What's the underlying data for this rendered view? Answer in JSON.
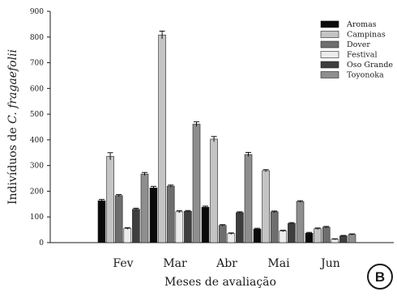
{
  "chart_data": {
    "type": "bar",
    "categories": [
      "Fev",
      "Mar",
      "Abr",
      "Mai",
      "Jun"
    ],
    "series": [
      {
        "name": "Aromas",
        "color": "#0a0a0a",
        "values": [
          163,
          213,
          138,
          53,
          37
        ],
        "errors": [
          5,
          6,
          4,
          3,
          3
        ]
      },
      {
        "name": "Campinas",
        "color": "#c4c4c4",
        "values": [
          336,
          808,
          403,
          280,
          54
        ],
        "errors": [
          14,
          15,
          10,
          4,
          3
        ]
      },
      {
        "name": "Dover",
        "color": "#6e6e6e",
        "values": [
          183,
          220,
          67,
          120,
          60
        ],
        "errors": [
          4,
          4,
          3,
          3,
          3
        ]
      },
      {
        "name": "Festival",
        "color": "#ececec",
        "values": [
          55,
          120,
          35,
          45,
          13
        ],
        "errors": [
          3,
          4,
          3,
          3,
          2
        ]
      },
      {
        "name": "Oso Grande",
        "color": "#3e3e3e",
        "values": [
          130,
          122,
          117,
          75,
          26
        ],
        "errors": [
          4,
          3,
          3,
          3,
          2
        ]
      },
      {
        "name": "Toyonoka",
        "color": "#8e8e8e",
        "values": [
          267,
          461,
          343,
          160,
          32
        ],
        "errors": [
          6,
          9,
          8,
          3,
          2
        ]
      }
    ],
    "ylim": [
      0,
      900
    ],
    "yticks": [
      "0",
      "100",
      "200",
      "300",
      "400",
      "500",
      "600",
      "700",
      "800",
      "900"
    ],
    "ylabel_prefix": "Indivíduos de ",
    "ylabel_italic": "C. fragaefolii",
    "xlabel": "Meses de avaliação",
    "legend_position": "top-right",
    "grid": false,
    "panel_label": "B"
  }
}
